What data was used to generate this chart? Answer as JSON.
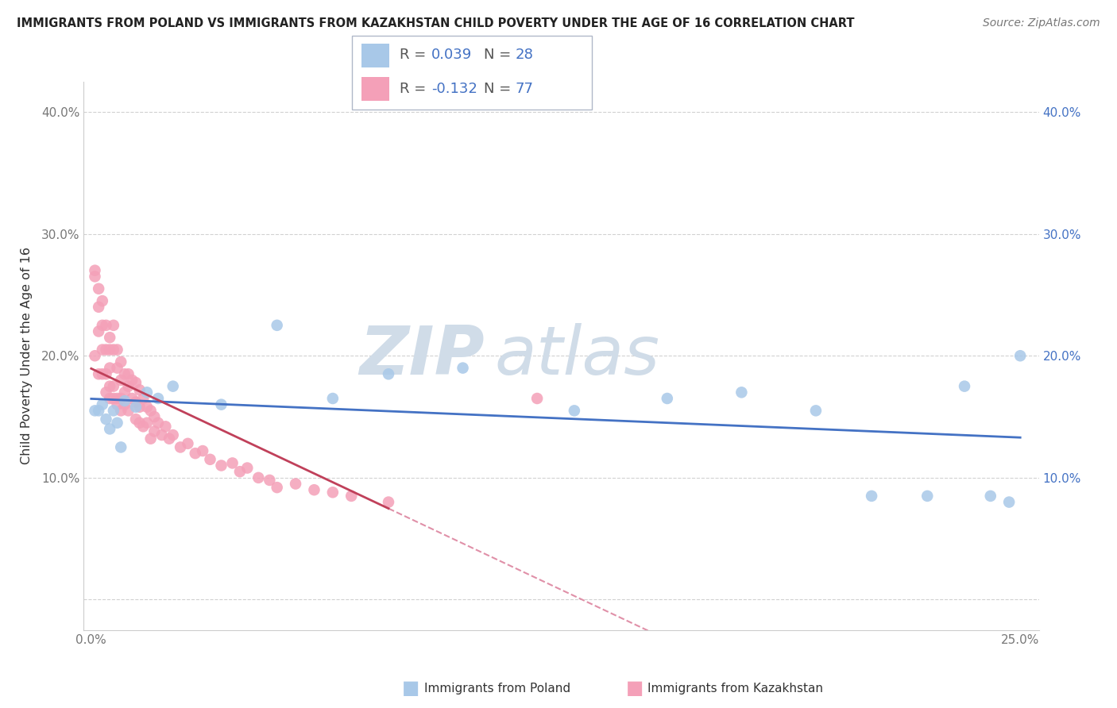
{
  "title": "IMMIGRANTS FROM POLAND VS IMMIGRANTS FROM KAZAKHSTAN CHILD POVERTY UNDER THE AGE OF 16 CORRELATION CHART",
  "source": "Source: ZipAtlas.com",
  "ylabel": "Child Poverty Under the Age of 16",
  "xlim": [
    -0.002,
    0.255
  ],
  "ylim": [
    -0.025,
    0.425
  ],
  "xticks": [
    0.0,
    0.05,
    0.1,
    0.15,
    0.2,
    0.25
  ],
  "xticklabels": [
    "0.0%",
    "",
    "",
    "",
    "",
    "25.0%"
  ],
  "ytick_positions": [
    0.0,
    0.1,
    0.2,
    0.3,
    0.4
  ],
  "ytick_labels": [
    "",
    "10.0%",
    "20.0%",
    "30.0%",
    "40.0%"
  ],
  "right_ytick_positions": [
    0.1,
    0.2,
    0.3,
    0.4
  ],
  "right_ytick_labels": [
    "10.0%",
    "20.0%",
    "30.0%",
    "40.0%"
  ],
  "poland_R": 0.039,
  "poland_N": 28,
  "kazakhstan_R": -0.132,
  "kazakhstan_N": 77,
  "poland_dot_color": "#a8c8e8",
  "kazakhstan_dot_color": "#f4a0b8",
  "poland_line_color": "#4472c4",
  "kazakhstan_line_color": "#c0405a",
  "kazakhstan_dash_color": "#e090a8",
  "watermark_zip": "ZIP",
  "watermark_atlas": "atlas",
  "watermark_color": "#d0dce8",
  "legend_value_color": "#4472c4",
  "legend_label_color": "#555555",
  "poland_x": [
    0.001,
    0.002,
    0.003,
    0.004,
    0.005,
    0.006,
    0.007,
    0.008,
    0.009,
    0.012,
    0.015,
    0.018,
    0.022,
    0.035,
    0.05,
    0.065,
    0.08,
    0.1,
    0.13,
    0.155,
    0.175,
    0.195,
    0.21,
    0.225,
    0.235,
    0.242,
    0.247,
    0.25
  ],
  "poland_y": [
    0.155,
    0.155,
    0.16,
    0.148,
    0.14,
    0.155,
    0.145,
    0.125,
    0.163,
    0.158,
    0.17,
    0.165,
    0.175,
    0.16,
    0.225,
    0.165,
    0.185,
    0.19,
    0.155,
    0.165,
    0.17,
    0.155,
    0.085,
    0.085,
    0.175,
    0.085,
    0.08,
    0.2
  ],
  "kazakhstan_x": [
    0.001,
    0.001,
    0.001,
    0.002,
    0.002,
    0.002,
    0.002,
    0.003,
    0.003,
    0.003,
    0.003,
    0.004,
    0.004,
    0.004,
    0.004,
    0.005,
    0.005,
    0.005,
    0.005,
    0.005,
    0.006,
    0.006,
    0.006,
    0.006,
    0.007,
    0.007,
    0.007,
    0.007,
    0.008,
    0.008,
    0.008,
    0.008,
    0.009,
    0.009,
    0.009,
    0.01,
    0.01,
    0.01,
    0.011,
    0.011,
    0.012,
    0.012,
    0.012,
    0.013,
    0.013,
    0.013,
    0.014,
    0.014,
    0.015,
    0.015,
    0.016,
    0.016,
    0.017,
    0.017,
    0.018,
    0.019,
    0.02,
    0.021,
    0.022,
    0.024,
    0.026,
    0.028,
    0.03,
    0.032,
    0.035,
    0.038,
    0.04,
    0.042,
    0.045,
    0.048,
    0.05,
    0.055,
    0.06,
    0.065,
    0.07,
    0.08,
    0.12
  ],
  "kazakhstan_y": [
    0.27,
    0.265,
    0.2,
    0.255,
    0.24,
    0.22,
    0.185,
    0.245,
    0.225,
    0.205,
    0.185,
    0.225,
    0.205,
    0.185,
    0.17,
    0.215,
    0.205,
    0.19,
    0.175,
    0.165,
    0.225,
    0.205,
    0.175,
    0.165,
    0.205,
    0.19,
    0.165,
    0.16,
    0.195,
    0.18,
    0.165,
    0.155,
    0.185,
    0.17,
    0.16,
    0.185,
    0.175,
    0.155,
    0.18,
    0.165,
    0.178,
    0.162,
    0.148,
    0.172,
    0.158,
    0.145,
    0.165,
    0.142,
    0.158,
    0.145,
    0.155,
    0.132,
    0.15,
    0.138,
    0.145,
    0.135,
    0.142,
    0.132,
    0.135,
    0.125,
    0.128,
    0.12,
    0.122,
    0.115,
    0.11,
    0.112,
    0.105,
    0.108,
    0.1,
    0.098,
    0.092,
    0.095,
    0.09,
    0.088,
    0.085,
    0.08,
    0.165
  ],
  "background_color": "#ffffff",
  "grid_color": "#cccccc"
}
